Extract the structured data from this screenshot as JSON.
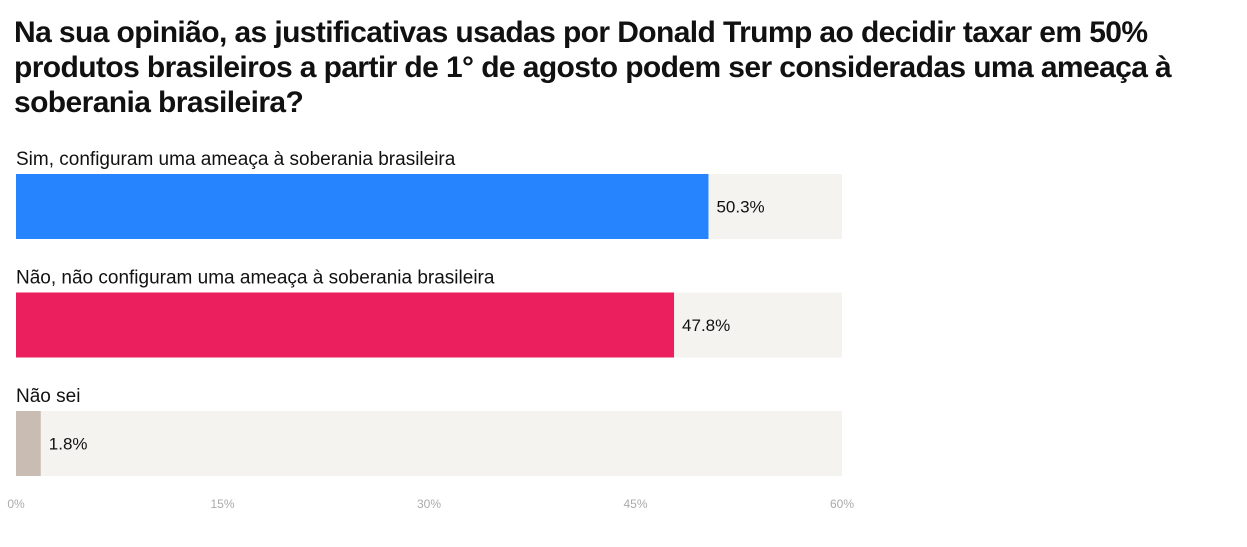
{
  "chart_data": {
    "type": "bar",
    "orientation": "horizontal",
    "title": "Na sua opinião, as justificativas usadas por Donald Trump ao decidir taxar em 50% produtos brasileiros a partir de 1° de agosto podem ser consideradas uma ameaça à soberania brasileira?",
    "categories": [
      "Sim, configuram uma ameaça à soberania brasileira",
      "Não, não configuram uma ameaça à soberania brasileira",
      "Não sei"
    ],
    "values": [
      50.3,
      47.8,
      1.8
    ],
    "value_labels": [
      "50.3%",
      "47.8%",
      "1.8%"
    ],
    "colors": [
      "#2684ff",
      "#ec1f5e",
      "#c9bdb3"
    ],
    "track_color": "#f4f3f0",
    "xlim": [
      0,
      60
    ],
    "x_ticks": [
      0,
      15,
      30,
      45,
      60
    ],
    "x_tick_labels": [
      "0%",
      "15%",
      "30%",
      "45%",
      "60%"
    ],
    "xlabel": "",
    "ylabel": "",
    "grid": false,
    "legend": "none"
  }
}
